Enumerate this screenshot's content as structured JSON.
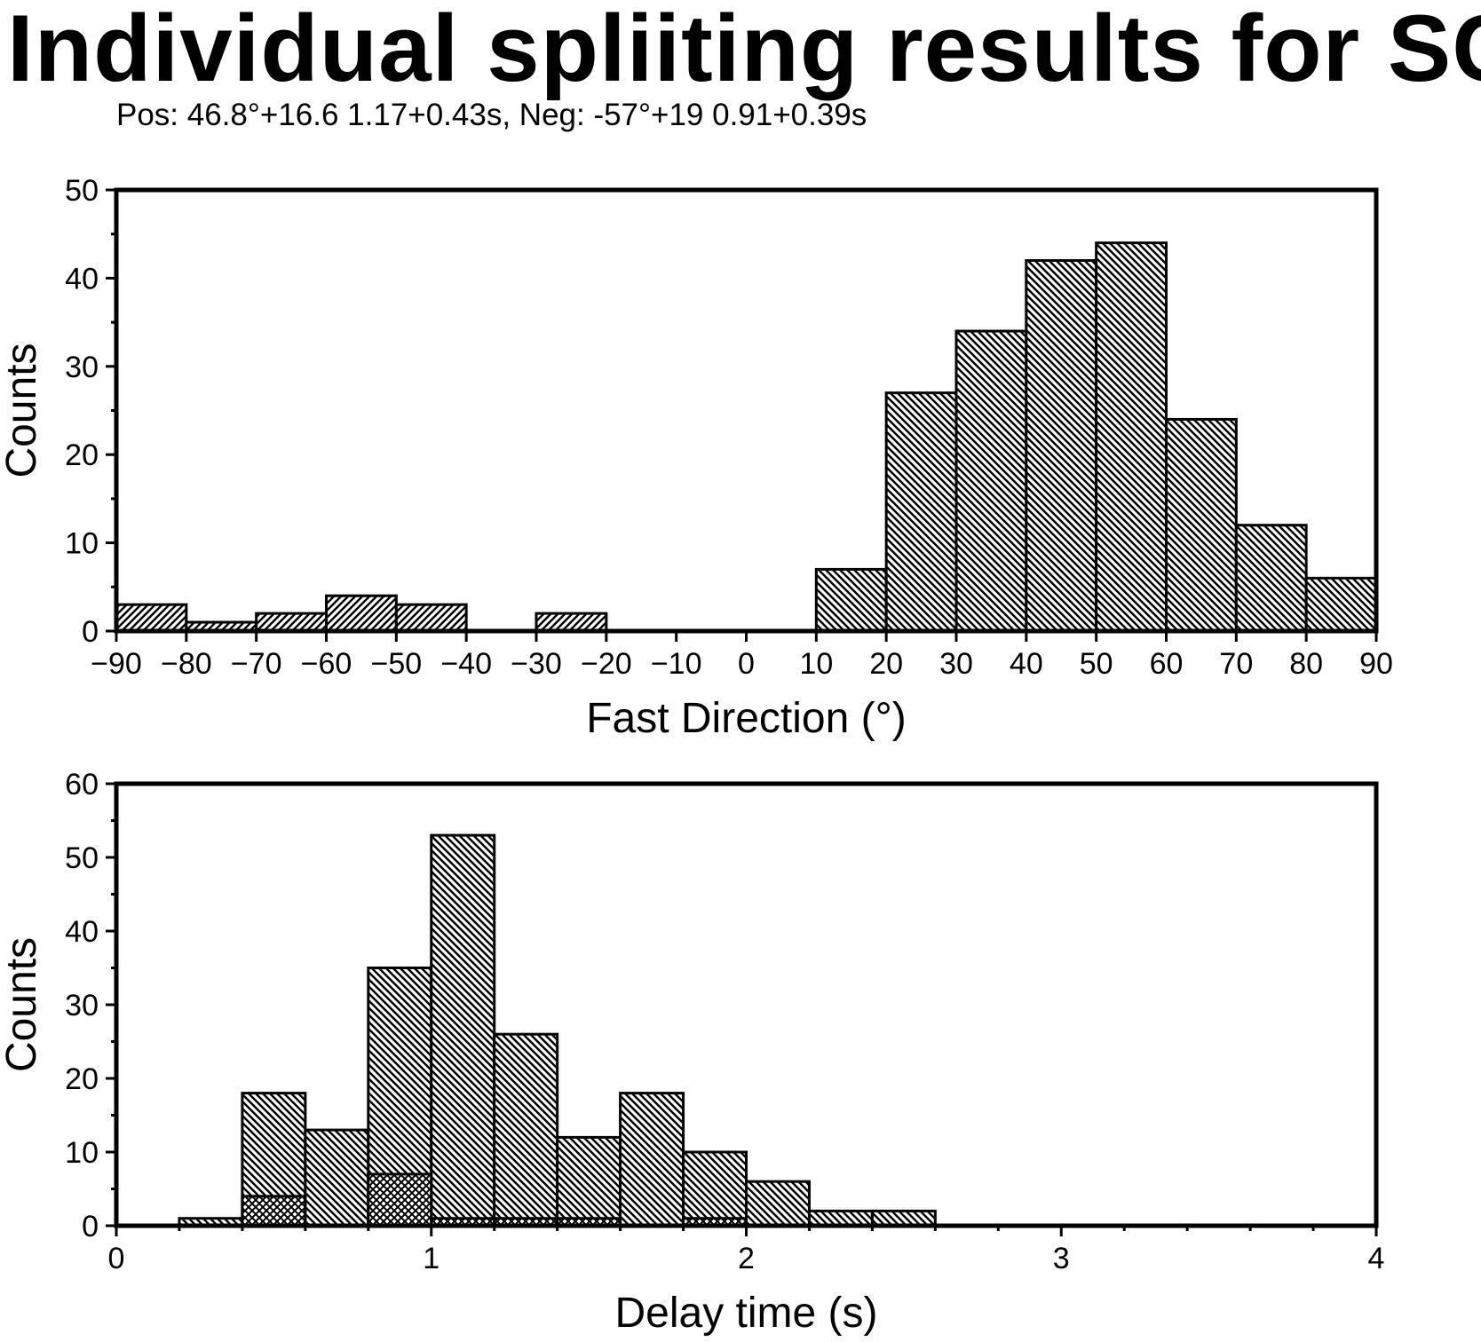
{
  "title": "Individual spliiting results for SC",
  "subtitle": "Pos: 46.8°+16.6 1.17+0.43s, Neg: -57°+19 0.91+0.39s",
  "chart_data": [
    {
      "type": "bar",
      "xlabel": "Fast Direction (°)",
      "ylabel": "Counts",
      "xlim": [
        -90,
        90
      ],
      "ylim": [
        0,
        50
      ],
      "xticks": [
        -90,
        -80,
        -70,
        -60,
        -50,
        -40,
        -30,
        -20,
        -10,
        0,
        10,
        20,
        30,
        40,
        50,
        60,
        70,
        80,
        90
      ],
      "xtick_labels": [
        "−90",
        "−80",
        "−70",
        "−60",
        "−50",
        "−40",
        "−30",
        "−20",
        "−10",
        "0",
        "10",
        "20",
        "30",
        "40",
        "50",
        "60",
        "70",
        "80",
        "90"
      ],
      "yticks": [
        0,
        10,
        20,
        30,
        40,
        50
      ],
      "bin_width": 10,
      "series": [
        {
          "pattern": "hatch-forward",
          "bins": [
            {
              "start": -90,
              "count": 3
            },
            {
              "start": -80,
              "count": 1
            },
            {
              "start": -70,
              "count": 2
            },
            {
              "start": -60,
              "count": 4
            },
            {
              "start": -50,
              "count": 3
            },
            {
              "start": -30,
              "count": 2
            }
          ]
        },
        {
          "pattern": "hatch-back",
          "bins": [
            {
              "start": 10,
              "count": 7
            },
            {
              "start": 20,
              "count": 27
            },
            {
              "start": 30,
              "count": 34
            },
            {
              "start": 40,
              "count": 42
            },
            {
              "start": 50,
              "count": 44
            },
            {
              "start": 60,
              "count": 24
            },
            {
              "start": 70,
              "count": 12
            },
            {
              "start": 80,
              "count": 6
            }
          ]
        }
      ]
    },
    {
      "type": "bar",
      "xlabel": "Delay time (s)",
      "ylabel": "Counts",
      "xlim": [
        0,
        4
      ],
      "ylim": [
        0,
        60
      ],
      "xticks": [
        0,
        1,
        2,
        3,
        4
      ],
      "xtick_labels": [
        "0",
        "1",
        "2",
        "3",
        "4"
      ],
      "yticks": [
        0,
        10,
        20,
        30,
        40,
        50,
        60
      ],
      "bin_width": 0.2,
      "series": [
        {
          "pattern": "hatch-back",
          "bins": [
            {
              "start": 0.2,
              "count": 1
            },
            {
              "start": 0.4,
              "count": 18
            },
            {
              "start": 0.6,
              "count": 13
            },
            {
              "start": 0.8,
              "count": 35
            },
            {
              "start": 1.0,
              "count": 53
            },
            {
              "start": 1.2,
              "count": 26
            },
            {
              "start": 1.4,
              "count": 12
            },
            {
              "start": 1.6,
              "count": 18
            },
            {
              "start": 1.8,
              "count": 10
            },
            {
              "start": 2.0,
              "count": 6
            },
            {
              "start": 2.2,
              "count": 2
            },
            {
              "start": 2.4,
              "count": 2
            }
          ]
        },
        {
          "pattern": "cross-hatch",
          "bins": [
            {
              "start": 0.4,
              "count": 4
            },
            {
              "start": 0.8,
              "count": 7
            },
            {
              "start": 1.0,
              "count": 1
            },
            {
              "start": 1.2,
              "count": 1
            },
            {
              "start": 1.4,
              "count": 1
            },
            {
              "start": 1.8,
              "count": 1
            }
          ]
        }
      ]
    }
  ]
}
